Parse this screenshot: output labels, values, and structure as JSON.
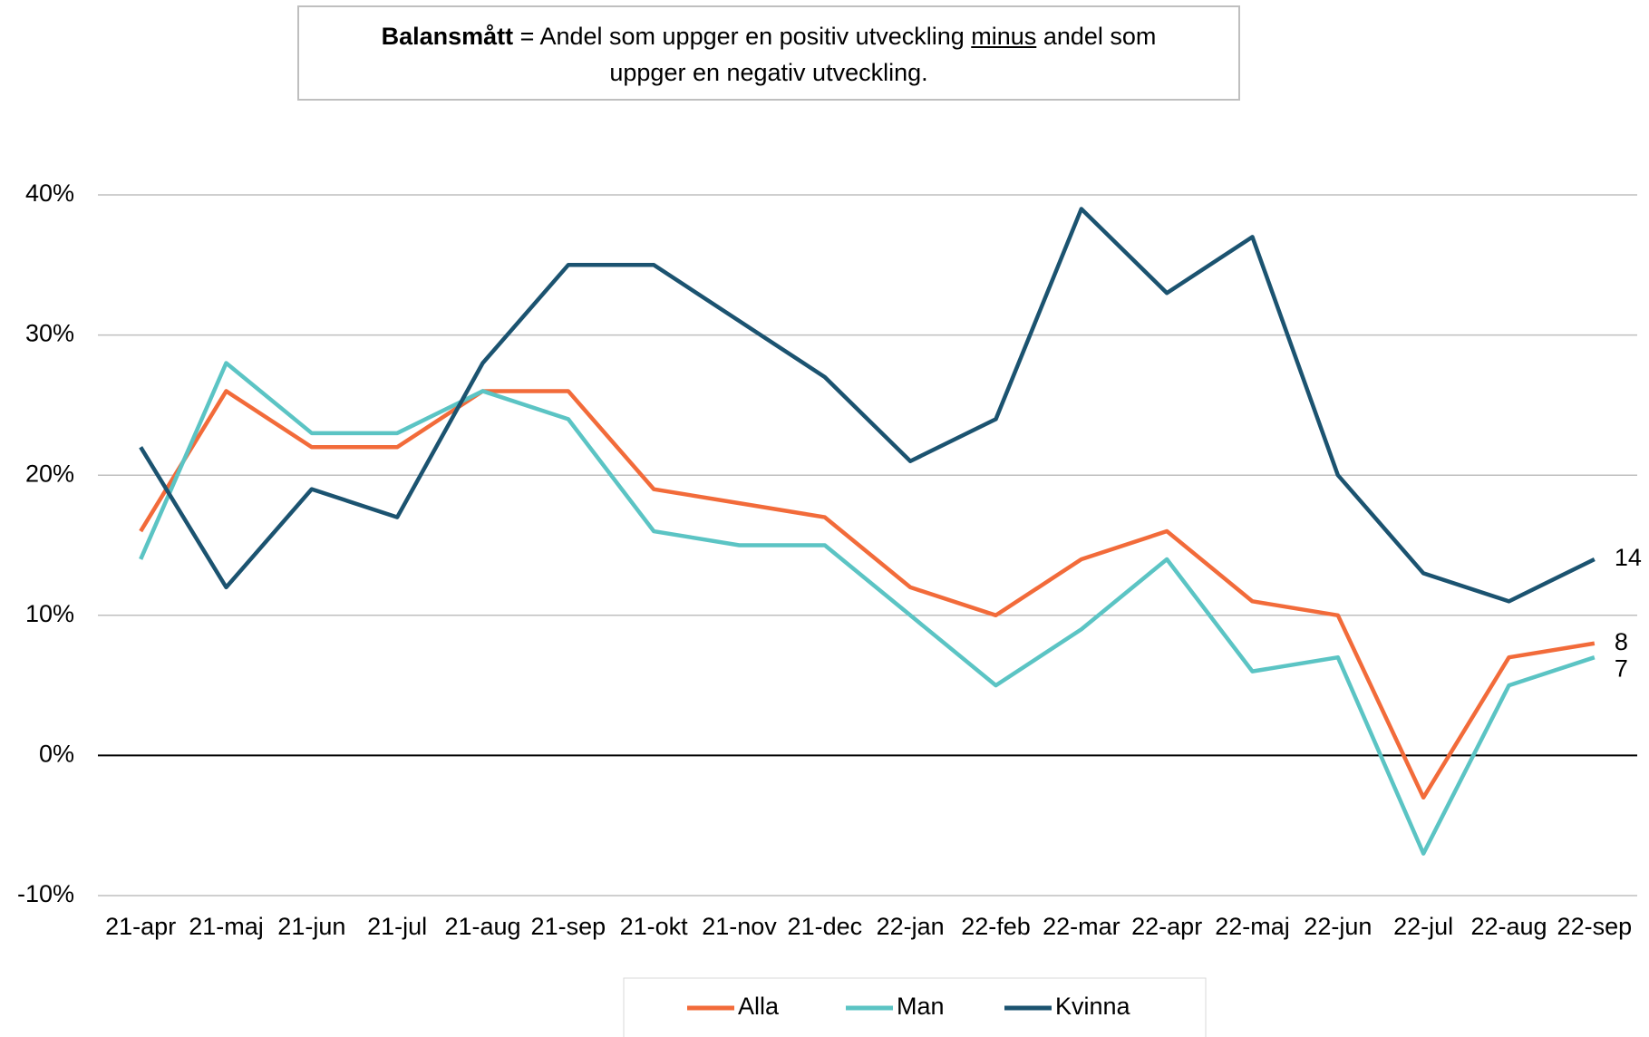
{
  "chart_data": {
    "type": "line",
    "annotation": {
      "bold": "Balansmått",
      "equals": "=",
      "text1": "Andel som uppger en positiv utveckling",
      "underline": "minus",
      "text2": "andel som uppger en negativ utveckling."
    },
    "categories": [
      "21-apr",
      "21-maj",
      "21-jun",
      "21-jul",
      "21-aug",
      "21-sep",
      "21-okt",
      "21-nov",
      "21-dec",
      "22-jan",
      "22-feb",
      "22-mar",
      "22-apr",
      "22-maj",
      "22-jun",
      "22-jul",
      "22-aug",
      "22-sep"
    ],
    "series": [
      {
        "name": "Alla",
        "color": "#f26b3a",
        "values": [
          16,
          26,
          22,
          22,
          26,
          26,
          19,
          18,
          17,
          12,
          10,
          14,
          16,
          11,
          10,
          -3,
          7,
          8
        ]
      },
      {
        "name": "Man",
        "color": "#5bc4c4",
        "values": [
          14,
          28,
          23,
          23,
          26,
          24,
          16,
          15,
          15,
          10,
          5,
          9,
          14,
          6,
          7,
          -7,
          5,
          7
        ]
      },
      {
        "name": "Kvinna",
        "color": "#1b5370",
        "values": [
          22,
          12,
          19,
          17,
          28,
          35,
          35,
          31,
          27,
          21,
          24,
          39,
          33,
          37,
          20,
          13,
          11,
          14
        ]
      }
    ],
    "ylim": [
      -10,
      40
    ],
    "yticks": [
      {
        "value": -10,
        "label": "-10%"
      },
      {
        "value": 0,
        "label": "0%"
      },
      {
        "value": 10,
        "label": "10%"
      },
      {
        "value": 20,
        "label": "20%"
      },
      {
        "value": 30,
        "label": "30%"
      },
      {
        "value": 40,
        "label": "40%"
      }
    ],
    "grid": true,
    "legend": "bottom"
  }
}
